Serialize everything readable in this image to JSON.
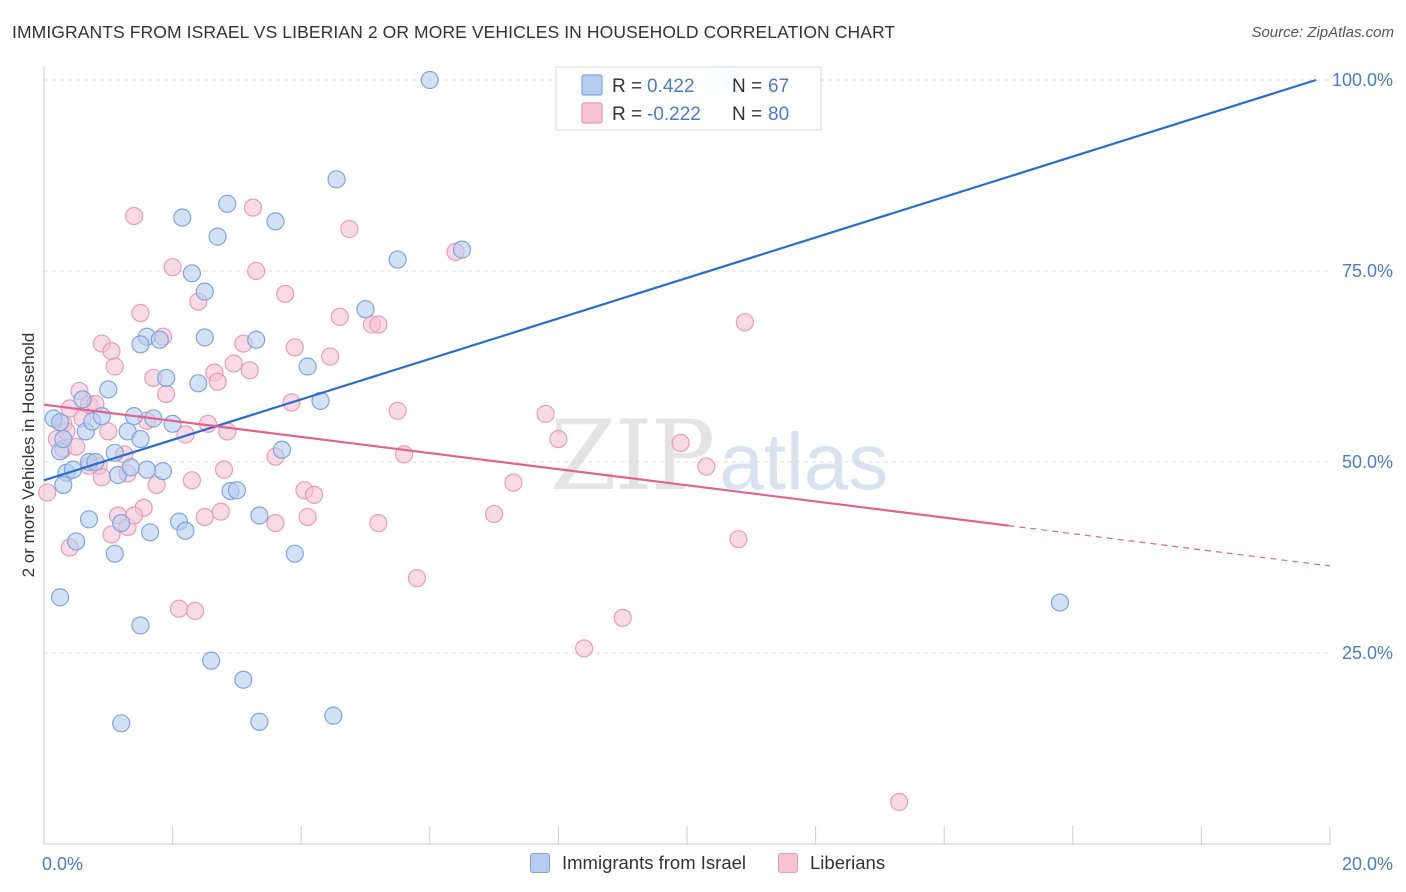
{
  "title": "IMMIGRANTS FROM ISRAEL VS LIBERIAN 2 OR MORE VEHICLES IN HOUSEHOLD CORRELATION CHART",
  "source": "Source: ZipAtlas.com",
  "watermark": {
    "zip": "ZIP",
    "atlas": "atlas"
  },
  "colors": {
    "israel_fill": "#b5cdf0",
    "israel_stroke": "#7fa6dc",
    "israel_line": "#2a6dcc",
    "liberian_fill": "#f7c3d3",
    "liberian_stroke": "#ea9bb6",
    "liberian_line": "#e0648f",
    "tick_label": "#4a7cc9"
  },
  "stats_legend": [
    {
      "series": "israel",
      "r_label": "R =",
      "r_value": "0.422",
      "n_label": "N =",
      "n_value": "67"
    },
    {
      "series": "liberian",
      "r_label": "R =",
      "r_value": "-0.222",
      "n_label": "N =",
      "n_value": "80"
    }
  ],
  "legend": [
    {
      "series": "israel",
      "label": "Immigrants from Israel"
    },
    {
      "series": "liberian",
      "label": "Liberians"
    }
  ],
  "chart_data": {
    "type": "scatter",
    "title": "IMMIGRANTS FROM ISRAEL VS LIBERIAN 2 OR MORE VEHICLES IN HOUSEHOLD CORRELATION CHART",
    "xlabel": "",
    "ylabel": "2 or more Vehicles in Household",
    "xlim": [
      0,
      20
    ],
    "ylim": [
      0,
      100
    ],
    "x_tick_labels": [
      "0.0%",
      "20.0%"
    ],
    "y_ticks": [
      25,
      50,
      75,
      100
    ],
    "y_tick_labels": [
      "25.0%",
      "50.0%",
      "75.0%",
      "100.0%"
    ],
    "grid": true,
    "legend_position": "bottom",
    "series": [
      {
        "name": "Immigrants from Israel",
        "key": "israel",
        "R": 0.422,
        "N": 67,
        "trend": {
          "x0": 0.0,
          "y0": 47.6,
          "x1": 20.0,
          "y1": 100.0,
          "dashed_from": null
        },
        "points": [
          [
            0.15,
            55.7
          ],
          [
            0.25,
            55.2
          ],
          [
            0.25,
            51.4
          ],
          [
            0.35,
            48.6
          ],
          [
            0.45,
            49.0
          ],
          [
            0.6,
            58.2
          ],
          [
            0.65,
            54.0
          ],
          [
            0.7,
            50.0
          ],
          [
            0.75,
            55.3
          ],
          [
            0.9,
            56.0
          ],
          [
            1.0,
            59.5
          ],
          [
            1.1,
            51.2
          ],
          [
            1.15,
            48.3
          ],
          [
            1.3,
            54.0
          ],
          [
            1.35,
            49.3
          ],
          [
            1.4,
            56.0
          ],
          [
            1.5,
            53.0
          ],
          [
            1.6,
            66.4
          ],
          [
            1.7,
            55.7
          ],
          [
            1.8,
            66.0
          ],
          [
            1.85,
            48.8
          ],
          [
            1.9,
            61.0
          ],
          [
            2.0,
            55.0
          ],
          [
            2.1,
            42.2
          ],
          [
            2.15,
            82.0
          ],
          [
            2.3,
            74.7
          ],
          [
            2.5,
            72.3
          ],
          [
            2.7,
            79.5
          ],
          [
            2.85,
            83.8
          ],
          [
            2.9,
            46.2
          ],
          [
            3.0,
            46.3
          ],
          [
            3.35,
            43.0
          ],
          [
            3.7,
            51.6
          ],
          [
            3.9,
            38.0
          ],
          [
            4.1,
            62.5
          ],
          [
            4.3,
            58.0
          ],
          [
            4.55,
            87.0
          ],
          [
            5.0,
            70.0
          ],
          [
            5.5,
            76.5
          ],
          [
            6.0,
            100.0
          ],
          [
            6.5,
            77.8
          ],
          [
            8.6,
            100.0
          ],
          [
            10.5,
            100.0
          ],
          [
            10.7,
            100.0
          ],
          [
            15.8,
            31.6
          ],
          [
            0.25,
            32.3
          ],
          [
            0.5,
            39.6
          ],
          [
            0.7,
            42.5
          ],
          [
            1.1,
            38.0
          ],
          [
            1.2,
            42.0
          ],
          [
            1.5,
            28.6
          ],
          [
            1.65,
            40.8
          ],
          [
            2.2,
            41.0
          ],
          [
            2.6,
            24.0
          ],
          [
            3.1,
            21.5
          ],
          [
            3.35,
            16.0
          ],
          [
            4.5,
            16.8
          ],
          [
            1.2,
            15.8
          ],
          [
            0.3,
            47.0
          ],
          [
            0.8,
            50.0
          ],
          [
            2.5,
            66.3
          ],
          [
            3.3,
            66.0
          ],
          [
            1.5,
            65.4
          ],
          [
            1.6,
            49.0
          ],
          [
            2.4,
            60.3
          ],
          [
            0.3,
            53.0
          ],
          [
            3.6,
            81.5
          ]
        ]
      },
      {
        "name": "Liberians",
        "key": "liberian",
        "R": -0.222,
        "N": 80,
        "trend": {
          "x0": 0.0,
          "y0": 57.5,
          "x1": 20.0,
          "y1": 36.4,
          "dashed_from": 15.0
        },
        "points": [
          [
            0.05,
            46.0
          ],
          [
            0.2,
            53.0
          ],
          [
            0.3,
            51.7
          ],
          [
            0.4,
            57.0
          ],
          [
            0.5,
            52.0
          ],
          [
            0.55,
            59.3
          ],
          [
            0.6,
            55.7
          ],
          [
            0.7,
            57.5
          ],
          [
            0.8,
            57.6
          ],
          [
            0.85,
            49.5
          ],
          [
            0.9,
            65.5
          ],
          [
            1.0,
            54.0
          ],
          [
            1.05,
            64.5
          ],
          [
            1.1,
            62.5
          ],
          [
            1.15,
            43.0
          ],
          [
            1.3,
            48.5
          ],
          [
            1.4,
            82.2
          ],
          [
            1.5,
            69.5
          ],
          [
            1.55,
            44.0
          ],
          [
            1.7,
            61.0
          ],
          [
            1.75,
            47.0
          ],
          [
            1.85,
            66.4
          ],
          [
            2.0,
            75.5
          ],
          [
            2.1,
            30.8
          ],
          [
            2.2,
            53.6
          ],
          [
            2.3,
            47.6
          ],
          [
            2.4,
            71.0
          ],
          [
            2.55,
            55.0
          ],
          [
            2.65,
            61.7
          ],
          [
            2.75,
            43.5
          ],
          [
            2.85,
            54.0
          ],
          [
            2.95,
            62.9
          ],
          [
            3.1,
            65.5
          ],
          [
            3.2,
            62.0
          ],
          [
            3.3,
            75.0
          ],
          [
            3.6,
            50.7
          ],
          [
            3.75,
            72.0
          ],
          [
            3.85,
            57.8
          ],
          [
            3.9,
            65.0
          ],
          [
            4.05,
            46.3
          ],
          [
            4.2,
            45.7
          ],
          [
            4.45,
            63.8
          ],
          [
            4.6,
            69.0
          ],
          [
            4.75,
            80.5
          ],
          [
            5.1,
            68.0
          ],
          [
            5.2,
            42.0
          ],
          [
            5.5,
            56.7
          ],
          [
            5.6,
            51.0
          ],
          [
            5.8,
            34.8
          ],
          [
            6.4,
            77.5
          ],
          [
            7.0,
            43.2
          ],
          [
            7.3,
            47.3
          ],
          [
            7.8,
            56.3
          ],
          [
            8.0,
            53.0
          ],
          [
            8.4,
            25.6
          ],
          [
            9.0,
            29.6
          ],
          [
            9.9,
            52.5
          ],
          [
            10.3,
            49.4
          ],
          [
            10.8,
            39.9
          ],
          [
            10.9,
            68.3
          ],
          [
            13.3,
            5.5
          ],
          [
            0.4,
            38.8
          ],
          [
            0.9,
            48.0
          ],
          [
            1.05,
            40.5
          ],
          [
            1.3,
            41.5
          ],
          [
            2.35,
            30.5
          ],
          [
            2.5,
            42.8
          ],
          [
            3.6,
            42.0
          ],
          [
            4.1,
            42.8
          ],
          [
            5.2,
            68.0
          ],
          [
            1.4,
            43.0
          ],
          [
            1.6,
            55.4
          ],
          [
            0.7,
            49.5
          ],
          [
            1.25,
            51.0
          ],
          [
            2.8,
            49.0
          ],
          [
            0.3,
            55.0
          ],
          [
            3.25,
            83.3
          ],
          [
            1.9,
            58.9
          ],
          [
            0.35,
            54.0
          ],
          [
            2.7,
            60.5
          ]
        ]
      }
    ]
  }
}
